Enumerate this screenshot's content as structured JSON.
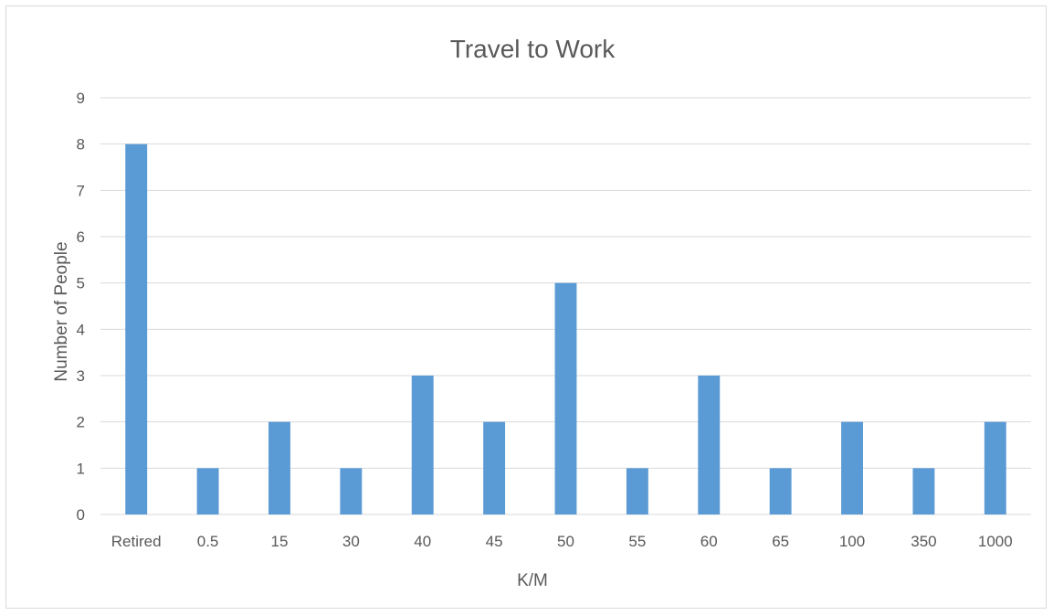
{
  "chart_data": {
    "type": "bar",
    "title": "Travel to Work",
    "xlabel": "K/M",
    "ylabel": "Number of People",
    "categories": [
      "Retired",
      "0.5",
      "15",
      "30",
      "40",
      "45",
      "50",
      "55",
      "60",
      "65",
      "100",
      "350",
      "1000"
    ],
    "values": [
      8,
      1,
      2,
      1,
      3,
      2,
      5,
      1,
      3,
      1,
      2,
      1,
      2
    ],
    "ylim": [
      0,
      9
    ],
    "yticks": [
      "0",
      "1",
      "2",
      "3",
      "4",
      "5",
      "6",
      "7",
      "8",
      "9"
    ],
    "grid": true,
    "legend": "none",
    "colors": {
      "bar": "#5b9bd5",
      "grid": "#d9d9d9",
      "text": "#595959"
    }
  }
}
